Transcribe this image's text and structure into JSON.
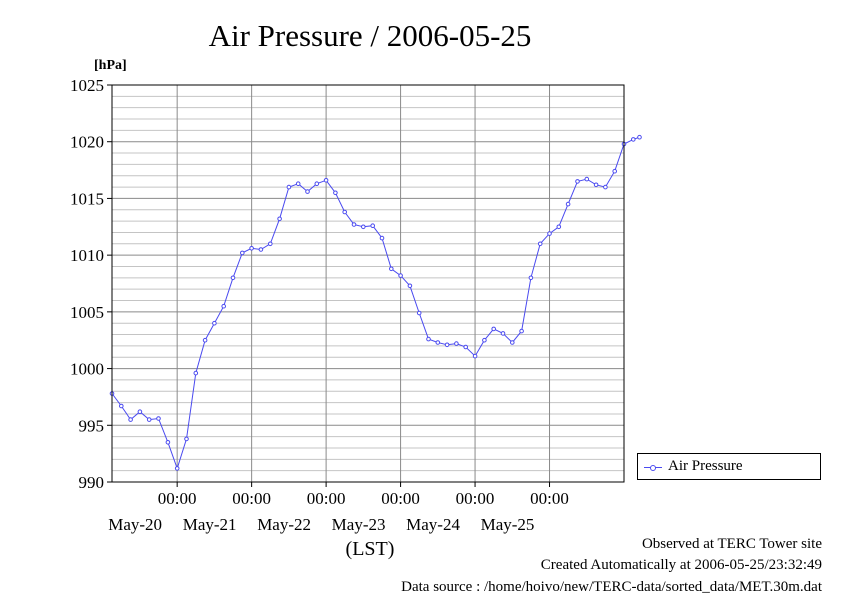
{
  "chart_data": {
    "type": "line",
    "title": "Air Pressure / 2006-05-25",
    "unit_label": "[hPa]",
    "xlabel": "(LST)",
    "x_range": [
      "2006-05-19 03:00",
      "2006-05-26 00:00"
    ],
    "ylim": [
      990,
      1025
    ],
    "y_ticks": [
      990,
      995,
      1000,
      1005,
      1010,
      1015,
      1020,
      1025
    ],
    "y_tick_labels": [
      "990",
      "995",
      "1000",
      "1005",
      "1010",
      "1015",
      "1020",
      "1025"
    ],
    "x_ticks": [
      "2006-05-20 00:00",
      "2006-05-21 00:00",
      "2006-05-22 00:00",
      "2006-05-23 00:00",
      "2006-05-24 00:00",
      "2006-05-25 00:00"
    ],
    "x_tick_time_labels": [
      "00:00",
      "00:00",
      "00:00",
      "00:00",
      "00:00",
      "00:00"
    ],
    "x_tick_date_labels": [
      "May-20",
      "May-21",
      "May-22",
      "May-23",
      "May-24",
      "May-25"
    ],
    "grid": true,
    "legend_position": "right",
    "series": [
      {
        "name": "Air Pressure",
        "color": "#4a4af0",
        "marker": "circle",
        "points": [
          [
            "2006-05-19 03:00",
            997.8
          ],
          [
            "2006-05-19 06:00",
            996.7
          ],
          [
            "2006-05-19 09:00",
            995.5
          ],
          [
            "2006-05-19 12:00",
            996.2
          ],
          [
            "2006-05-19 15:00",
            995.5
          ],
          [
            "2006-05-19 18:00",
            995.6
          ],
          [
            "2006-05-19 21:00",
            993.5
          ],
          [
            "2006-05-20 00:00",
            991.2
          ],
          [
            "2006-05-20 03:00",
            993.8
          ],
          [
            "2006-05-20 06:00",
            999.6
          ],
          [
            "2006-05-20 09:00",
            1002.5
          ],
          [
            "2006-05-20 12:00",
            1004.0
          ],
          [
            "2006-05-20 15:00",
            1005.5
          ],
          [
            "2006-05-20 18:00",
            1008.0
          ],
          [
            "2006-05-20 21:00",
            1010.2
          ],
          [
            "2006-05-21 00:00",
            1010.6
          ],
          [
            "2006-05-21 03:00",
            1010.5
          ],
          [
            "2006-05-21 06:00",
            1011.0
          ],
          [
            "2006-05-21 09:00",
            1013.2
          ],
          [
            "2006-05-21 12:00",
            1016.0
          ],
          [
            "2006-05-21 15:00",
            1016.3
          ],
          [
            "2006-05-21 18:00",
            1015.6
          ],
          [
            "2006-05-21 21:00",
            1016.3
          ],
          [
            "2006-05-22 00:00",
            1016.6
          ],
          [
            "2006-05-22 03:00",
            1015.5
          ],
          [
            "2006-05-22 06:00",
            1013.8
          ],
          [
            "2006-05-22 09:00",
            1012.7
          ],
          [
            "2006-05-22 12:00",
            1012.5
          ],
          [
            "2006-05-22 15:00",
            1012.6
          ],
          [
            "2006-05-22 18:00",
            1011.5
          ],
          [
            "2006-05-22 21:00",
            1008.8
          ],
          [
            "2006-05-23 00:00",
            1008.2
          ],
          [
            "2006-05-23 03:00",
            1007.3
          ],
          [
            "2006-05-23 06:00",
            1004.9
          ],
          [
            "2006-05-23 09:00",
            1002.6
          ],
          [
            "2006-05-23 12:00",
            1002.3
          ],
          [
            "2006-05-23 15:00",
            1002.1
          ],
          [
            "2006-05-23 18:00",
            1002.2
          ],
          [
            "2006-05-23 21:00",
            1001.9
          ],
          [
            "2006-05-24 00:00",
            1001.1
          ],
          [
            "2006-05-24 03:00",
            1002.5
          ],
          [
            "2006-05-24 06:00",
            1003.5
          ],
          [
            "2006-05-24 09:00",
            1003.1
          ],
          [
            "2006-05-24 12:00",
            1002.3
          ],
          [
            "2006-05-24 15:00",
            1003.3
          ],
          [
            "2006-05-24 18:00",
            1008.0
          ],
          [
            "2006-05-24 21:00",
            1011.0
          ],
          [
            "2006-05-25 00:00",
            1011.9
          ],
          [
            "2006-05-25 03:00",
            1012.5
          ],
          [
            "2006-05-25 06:00",
            1014.5
          ],
          [
            "2006-05-25 09:00",
            1016.5
          ],
          [
            "2006-05-25 12:00",
            1016.7
          ],
          [
            "2006-05-25 15:00",
            1016.2
          ],
          [
            "2006-05-25 18:00",
            1016.0
          ],
          [
            "2006-05-25 21:00",
            1017.4
          ],
          [
            "2006-05-26 00:00",
            1019.8
          ],
          [
            "2006-05-26 03:00",
            1020.2
          ],
          [
            "2006-05-26 05:00",
            1020.4
          ]
        ]
      }
    ]
  },
  "legend": {
    "label": "Air Pressure"
  },
  "footer": {
    "site": "Observed at TERC Tower site",
    "created": "Created Automatically at 2006-05-25/23:32:49",
    "source": "Data source : /home/hoivo/new/TERC-data/sorted_data/MET.30m.dat"
  }
}
